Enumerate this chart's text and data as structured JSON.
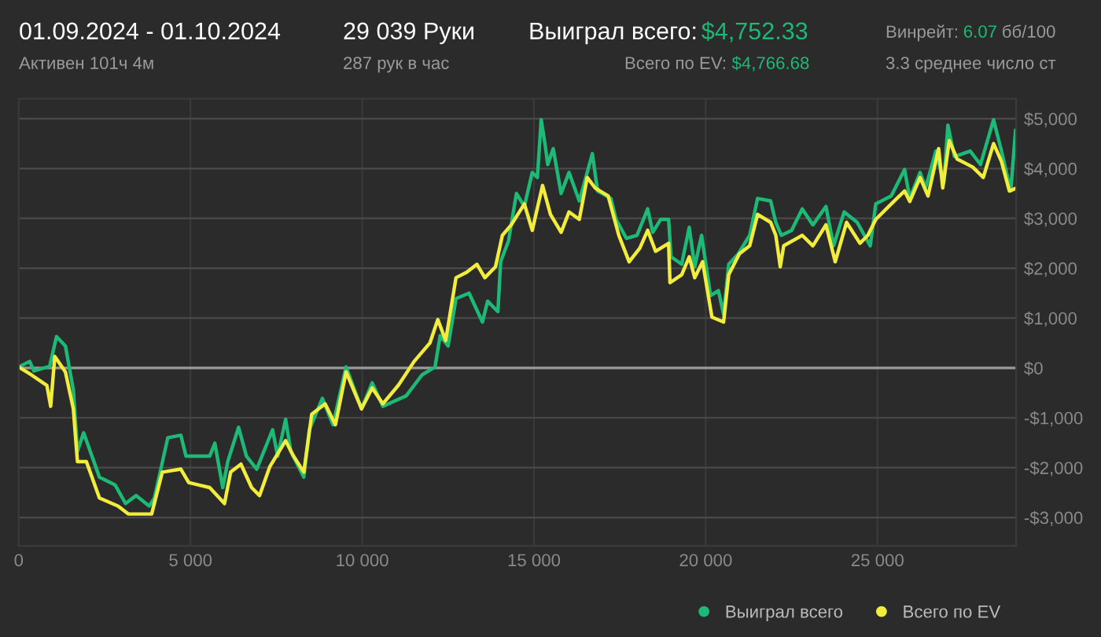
{
  "chart_data": {
    "type": "line",
    "annotations": [
      "01.09.2024 - 01.10.2024",
      "Активен 101ч 4м",
      "29 039 Руки",
      "287 рук в час",
      "Выиграл всего:",
      "$4,752.33",
      "Винрейт:",
      "6.07",
      "бб/100",
      "Всего по EV:",
      "$4,766.68",
      "3.3 среднее число ст"
    ],
    "xlim": [
      0,
      29039
    ],
    "ylim": [
      -3570,
      5400
    ],
    "xticks": [
      0,
      {
        "value": 5000,
        "label": "5 000"
      },
      {
        "value": 10000,
        "label": "10 000"
      },
      {
        "value": 15000,
        "label": "15 000"
      },
      {
        "value": 20000,
        "label": "20 000"
      },
      {
        "value": 25000,
        "label": "25 000"
      }
    ],
    "yticks": [
      {
        "value": -3000,
        "label": "-$3,000"
      },
      {
        "value": -2000,
        "label": "-$2,000"
      },
      {
        "value": -1000,
        "label": "-$1,000"
      },
      {
        "value": 0,
        "label": "$0"
      },
      {
        "value": 1000,
        "label": "$1,000"
      },
      {
        "value": 2000,
        "label": "$2,000"
      },
      {
        "value": 3000,
        "label": "$3,000"
      },
      {
        "value": 4000,
        "label": "$4,000"
      },
      {
        "value": 5000,
        "label": "$5,000"
      }
    ],
    "grid": true,
    "legend": "bottom right",
    "marker": "none",
    "line_style": "solid",
    "ref_lines": [
      {
        "axis": "y",
        "value": 0,
        "color": "#9a9a9a"
      }
    ],
    "series": [
      {
        "name": "Выиграл всего",
        "color": "#1db976",
        "x": [
          0,
          320,
          440,
          900,
          1100,
          1360,
          1590,
          1710,
          1890,
          2350,
          2810,
          3110,
          3420,
          3800,
          3950,
          4340,
          4720,
          4870,
          5560,
          5710,
          5940,
          6090,
          6400,
          6630,
          6930,
          7390,
          7540,
          7770,
          7920,
          8300,
          8460,
          8840,
          9150,
          9530,
          9980,
          10290,
          10600,
          11280,
          11740,
          12120,
          12270,
          12500,
          12730,
          13110,
          13500,
          13650,
          13950,
          14030,
          14260,
          14490,
          14720,
          14950,
          15100,
          15210,
          15330,
          15400,
          15560,
          15790,
          16020,
          16320,
          16550,
          16700,
          16850,
          17240,
          17390,
          17690,
          18000,
          18310,
          18460,
          18690,
          18920,
          18990,
          19300,
          19520,
          19680,
          19880,
          20140,
          20370,
          20520,
          20670,
          20950,
          21280,
          21510,
          21890,
          22040,
          22200,
          22500,
          22810,
          23120,
          23500,
          23720,
          24030,
          24410,
          24790,
          24950,
          25400,
          25790,
          25940,
          26240,
          26400,
          26700,
          26930,
          27050,
          27240,
          27700,
          28000,
          28380,
          28610,
          28880,
          29020
        ],
        "values": [
          20,
          130,
          -60,
          30,
          630,
          440,
          -440,
          -1670,
          -1300,
          -2190,
          -2350,
          -2720,
          -2560,
          -2770,
          -2610,
          -1400,
          -1350,
          -1770,
          -1770,
          -1510,
          -2400,
          -1870,
          -1190,
          -1770,
          -2030,
          -1240,
          -1770,
          -1030,
          -1670,
          -2190,
          -1240,
          -610,
          -1140,
          20,
          -820,
          -300,
          -770,
          -560,
          -140,
          20,
          650,
          440,
          1390,
          1500,
          920,
          1340,
          1130,
          2130,
          2550,
          3500,
          3240,
          3920,
          3820,
          4980,
          4450,
          4080,
          4400,
          3500,
          3920,
          3350,
          3920,
          4300,
          3550,
          3400,
          2980,
          2600,
          2660,
          3190,
          2720,
          2980,
          2980,
          2230,
          2080,
          2820,
          2030,
          2660,
          1450,
          1550,
          1080,
          2080,
          2290,
          2660,
          3400,
          3350,
          2920,
          2660,
          2760,
          3190,
          2870,
          3240,
          2450,
          3130,
          2920,
          2450,
          3290,
          3450,
          3980,
          3400,
          3920,
          3610,
          4350,
          3710,
          4870,
          4240,
          4350,
          4080,
          4980,
          4350,
          3550,
          4770
        ]
      },
      {
        "name": "Всего по EV",
        "color": "#f2ec3c",
        "x": [
          0,
          370,
          820,
          930,
          1050,
          1360,
          1590,
          1710,
          1970,
          2350,
          2890,
          3190,
          3870,
          4180,
          4720,
          4950,
          5560,
          5990,
          6170,
          6470,
          6780,
          7010,
          7310,
          7770,
          8000,
          8300,
          8530,
          8920,
          9220,
          9530,
          9980,
          10290,
          10600,
          11050,
          11510,
          11970,
          12200,
          12430,
          12730,
          13040,
          13340,
          13570,
          13880,
          14080,
          14340,
          14720,
          14950,
          15250,
          15480,
          15790,
          16020,
          16320,
          16550,
          16780,
          17160,
          17470,
          17770,
          18080,
          18310,
          18540,
          18920,
          18960,
          19300,
          19520,
          19680,
          19910,
          20180,
          20520,
          20670,
          20980,
          21280,
          21510,
          21890,
          22040,
          22170,
          22270,
          22810,
          23120,
          23500,
          23770,
          24100,
          24490,
          24720,
          24950,
          25400,
          25790,
          25940,
          26240,
          26470,
          26780,
          26900,
          27090,
          27320,
          27770,
          28080,
          28380,
          28610,
          28840,
          29020
        ],
        "values": [
          20,
          -140,
          -350,
          -770,
          230,
          -80,
          -820,
          -1880,
          -1880,
          -2610,
          -2770,
          -2930,
          -2930,
          -2090,
          -2030,
          -2300,
          -2400,
          -2720,
          -2090,
          -1930,
          -2400,
          -2560,
          -1980,
          -1460,
          -1770,
          -2090,
          -930,
          -720,
          -1140,
          -80,
          -820,
          -400,
          -720,
          -350,
          130,
          500,
          970,
          550,
          1810,
          1920,
          2080,
          1810,
          2030,
          2660,
          2870,
          3290,
          2760,
          3660,
          3080,
          2720,
          3130,
          2980,
          3820,
          3610,
          3450,
          2660,
          2130,
          2400,
          2760,
          2340,
          2500,
          1710,
          1870,
          2230,
          1810,
          2130,
          1020,
          920,
          1870,
          2290,
          2450,
          3080,
          2920,
          2660,
          2030,
          2450,
          2660,
          2450,
          2870,
          2130,
          2920,
          2500,
          2660,
          2980,
          3290,
          3550,
          3340,
          3820,
          3450,
          4400,
          3610,
          4560,
          4190,
          4030,
          3820,
          4500,
          4140,
          3550,
          3600
        ]
      }
    ]
  }
}
